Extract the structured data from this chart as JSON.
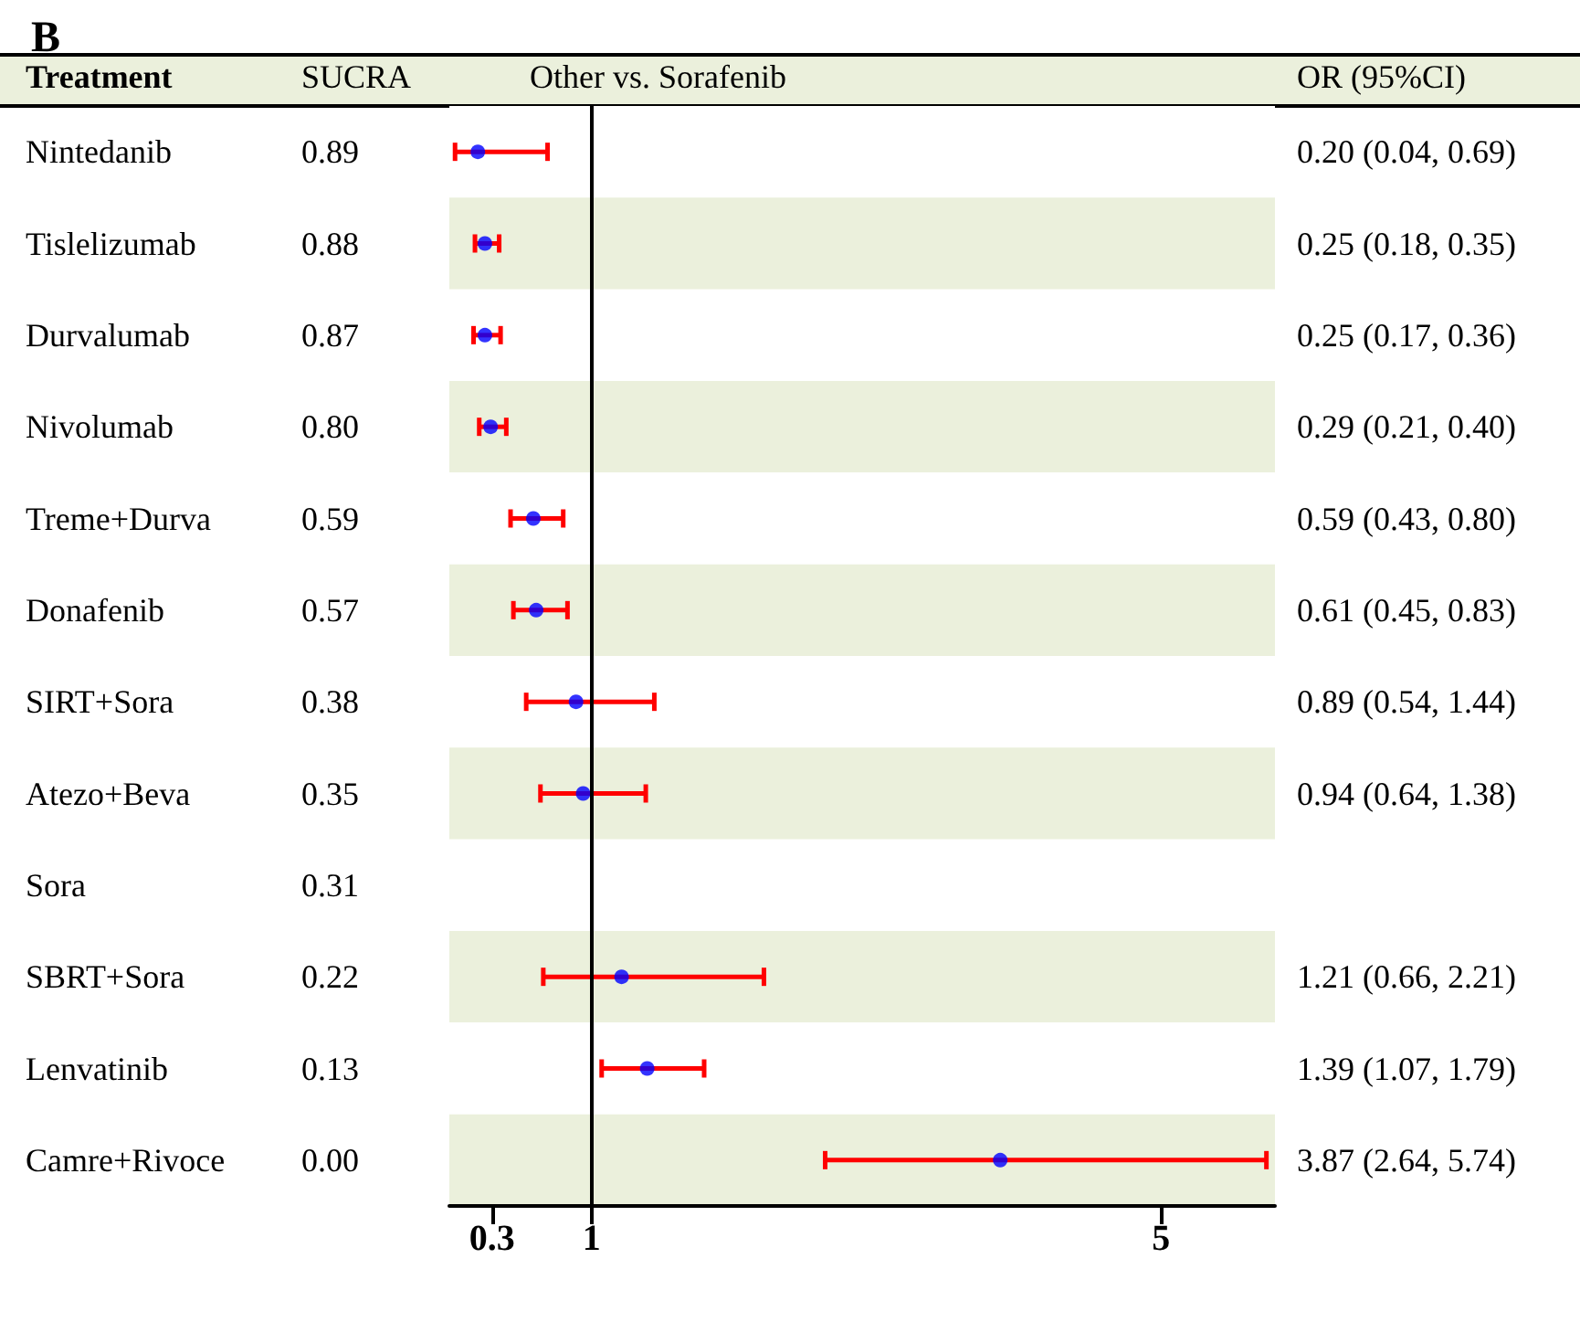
{
  "chart_data": {
    "type": "scatter",
    "orientation": "horizontal",
    "title": "B",
    "annotations": [
      "Treatment",
      "SUCRA",
      "Other vs. Sorafenib",
      "OR (95%CI)"
    ],
    "categories": [
      "Nintedanib",
      "Tislelizumab",
      "Durvalumab",
      "Nivolumab",
      "Treme+Durva",
      "Donafenib",
      "SIRT+Sora",
      "Atezo+Beva",
      "Sora",
      "SBRT+Sora",
      "Lenvatinib",
      "Camre+Rivoce"
    ],
    "y2_categories": [
      "0.89",
      "0.88",
      "0.87",
      "0.80",
      "0.59",
      "0.57",
      "0.38",
      "0.35",
      "0.31",
      "0.22",
      "0.13",
      "0.00"
    ],
    "series": [
      {
        "color": "#0000ff",
        "values": [
          0.2,
          0.25,
          0.25,
          0.29,
          0.59,
          0.61,
          0.89,
          0.94,
          null,
          1.21,
          1.39,
          3.87
        ],
        "errors": [
          [
            0.04,
            0.69
          ],
          [
            0.18,
            0.35
          ],
          [
            0.17,
            0.36
          ],
          [
            0.21,
            0.4
          ],
          [
            0.43,
            0.8
          ],
          [
            0.45,
            0.83
          ],
          [
            0.54,
            1.44
          ],
          [
            0.64,
            1.38
          ],
          null,
          [
            0.66,
            2.21
          ],
          [
            1.07,
            1.79
          ],
          [
            2.64,
            5.74
          ]
        ],
        "value_labels": [
          "0.20 (0.04, 0.69)",
          "0.25 (0.18, 0.35)",
          "0.25 (0.17, 0.36)",
          "0.29 (0.21, 0.40)",
          "0.59 (0.43, 0.80)",
          "0.61 (0.45, 0.83)",
          "0.89 (0.54, 1.44)",
          "0.94 (0.64, 1.38)",
          null,
          "1.21 (0.66, 2.21)",
          "1.39 (1.07, 1.79)",
          "3.87 (2.64, 5.74)"
        ]
      }
    ],
    "xlim": [
      0,
      5.8
    ],
    "xticks": [
      0.3,
      1,
      5
    ],
    "ref_lines": [
      {
        "axis": "x",
        "value": 1,
        "label": null,
        "color": "#000000"
      }
    ],
    "marker": "circle"
  }
}
